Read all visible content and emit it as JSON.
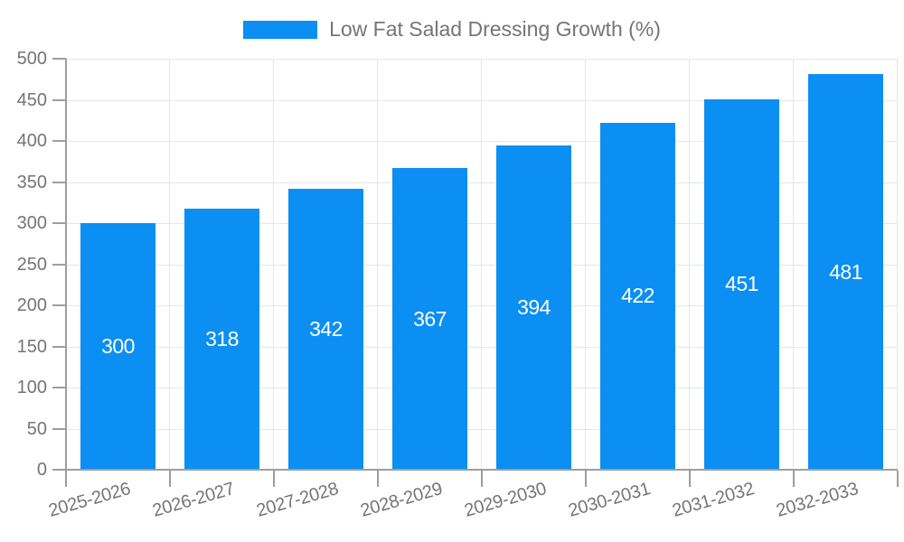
{
  "legend": {
    "label": "Low Fat Salad Dressing Growth (%)"
  },
  "chart_data": {
    "type": "bar",
    "title": "",
    "categories": [
      "2025-2026",
      "2026-2027",
      "2027-2028",
      "2028-2029",
      "2029-2030",
      "2030-2031",
      "2031-2032",
      "2032-2033"
    ],
    "series": [
      {
        "name": "Low Fat Salad Dressing Growth (%)",
        "values": [
          300,
          318,
          342,
          367,
          394,
          422,
          451,
          481
        ]
      }
    ],
    "value_labels": [
      "300",
      "318",
      "342",
      "367",
      "394",
      "422",
      "451",
      "481"
    ],
    "xlabel": "",
    "ylabel": "",
    "ylim": [
      0,
      500
    ],
    "y_tick_step": 50,
    "y_tick_labels": [
      "0",
      "50",
      "100",
      "150",
      "200",
      "250",
      "300",
      "350",
      "400",
      "450",
      "500"
    ],
    "grid": true,
    "legend_position": "top",
    "x_label_rotation_deg": -16,
    "colors": {
      "bar": "#0b8ff2",
      "grid": "#e6e6e6",
      "axis": "#9e9e9e",
      "tick_label": "#757575",
      "value_label": "#ffffff",
      "background": "#ffffff"
    }
  }
}
